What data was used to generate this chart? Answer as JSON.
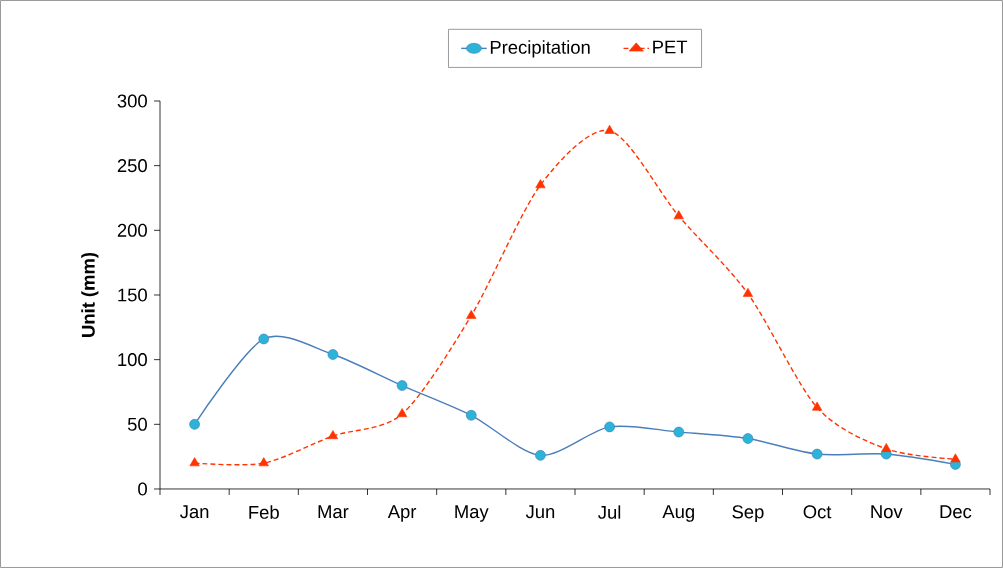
{
  "chart_data": {
    "type": "line",
    "ylabel": "Unit (mm)",
    "categories": [
      "Jan",
      "Feb",
      "Mar",
      "Apr",
      "May",
      "Jun",
      "Jul",
      "Aug",
      "Sep",
      "Oct",
      "Nov",
      "Dec"
    ],
    "series": [
      {
        "name": "Precipitation",
        "color": "#4a7ebb",
        "marker": "circle",
        "line_style": "solid",
        "values": [
          50,
          116,
          104,
          80,
          57,
          26,
          48,
          44,
          39,
          27,
          27,
          19
        ]
      },
      {
        "name": "PET",
        "color": "#ff3300",
        "marker": "triangle",
        "line_style": "dashed",
        "values": [
          20,
          20,
          41,
          58,
          134,
          235,
          277,
          211,
          151,
          63,
          31,
          23
        ]
      }
    ],
    "ylim": [
      0,
      300
    ],
    "yticks": [
      0,
      50,
      100,
      150,
      200,
      250,
      300
    ],
    "grid": false,
    "legend": "top"
  }
}
